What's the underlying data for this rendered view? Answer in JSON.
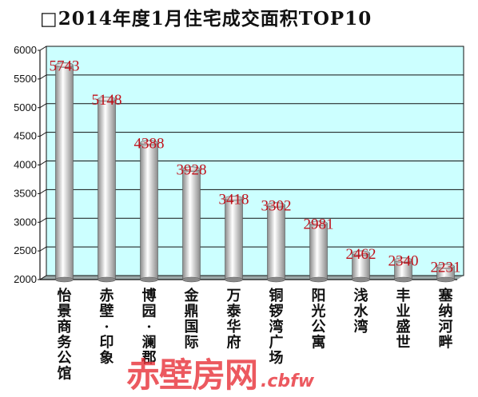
{
  "chart_data": {
    "type": "bar",
    "title": "□2014年度1月住宅成交面积TOP10",
    "categories": [
      "怡景商务公馆",
      "赤壁·印象",
      "博园·澜郡",
      "金鼎国际",
      "万泰华府",
      "铜锣湾广场",
      "阳光公寓",
      "浅水湾",
      "丰业盛世",
      "塞纳河畔"
    ],
    "values": [
      5743,
      5148,
      4388,
      3928,
      3418,
      3302,
      2981,
      2462,
      2340,
      2231
    ],
    "value_labels": [
      "5743",
      "5148",
      "4388",
      "3928",
      "3418",
      "3302",
      "2981",
      "2462",
      "2340",
      "2231"
    ],
    "ylim": [
      2000,
      6000
    ],
    "yticks": [
      "2000",
      "2500",
      "3000",
      "3500",
      "4000",
      "4500",
      "5000",
      "5500",
      "6000"
    ],
    "grid": true,
    "colors": {
      "plot_background": "#ccffff",
      "bar_highlight": "#ffffff",
      "bar_shadow": "#8a8a8a",
      "data_label": "#c0101a",
      "gridline": "#111111"
    }
  },
  "watermark": {
    "text_cn": "赤壁房网",
    "text_en": ".cbfw",
    "color": "#e8353d"
  }
}
